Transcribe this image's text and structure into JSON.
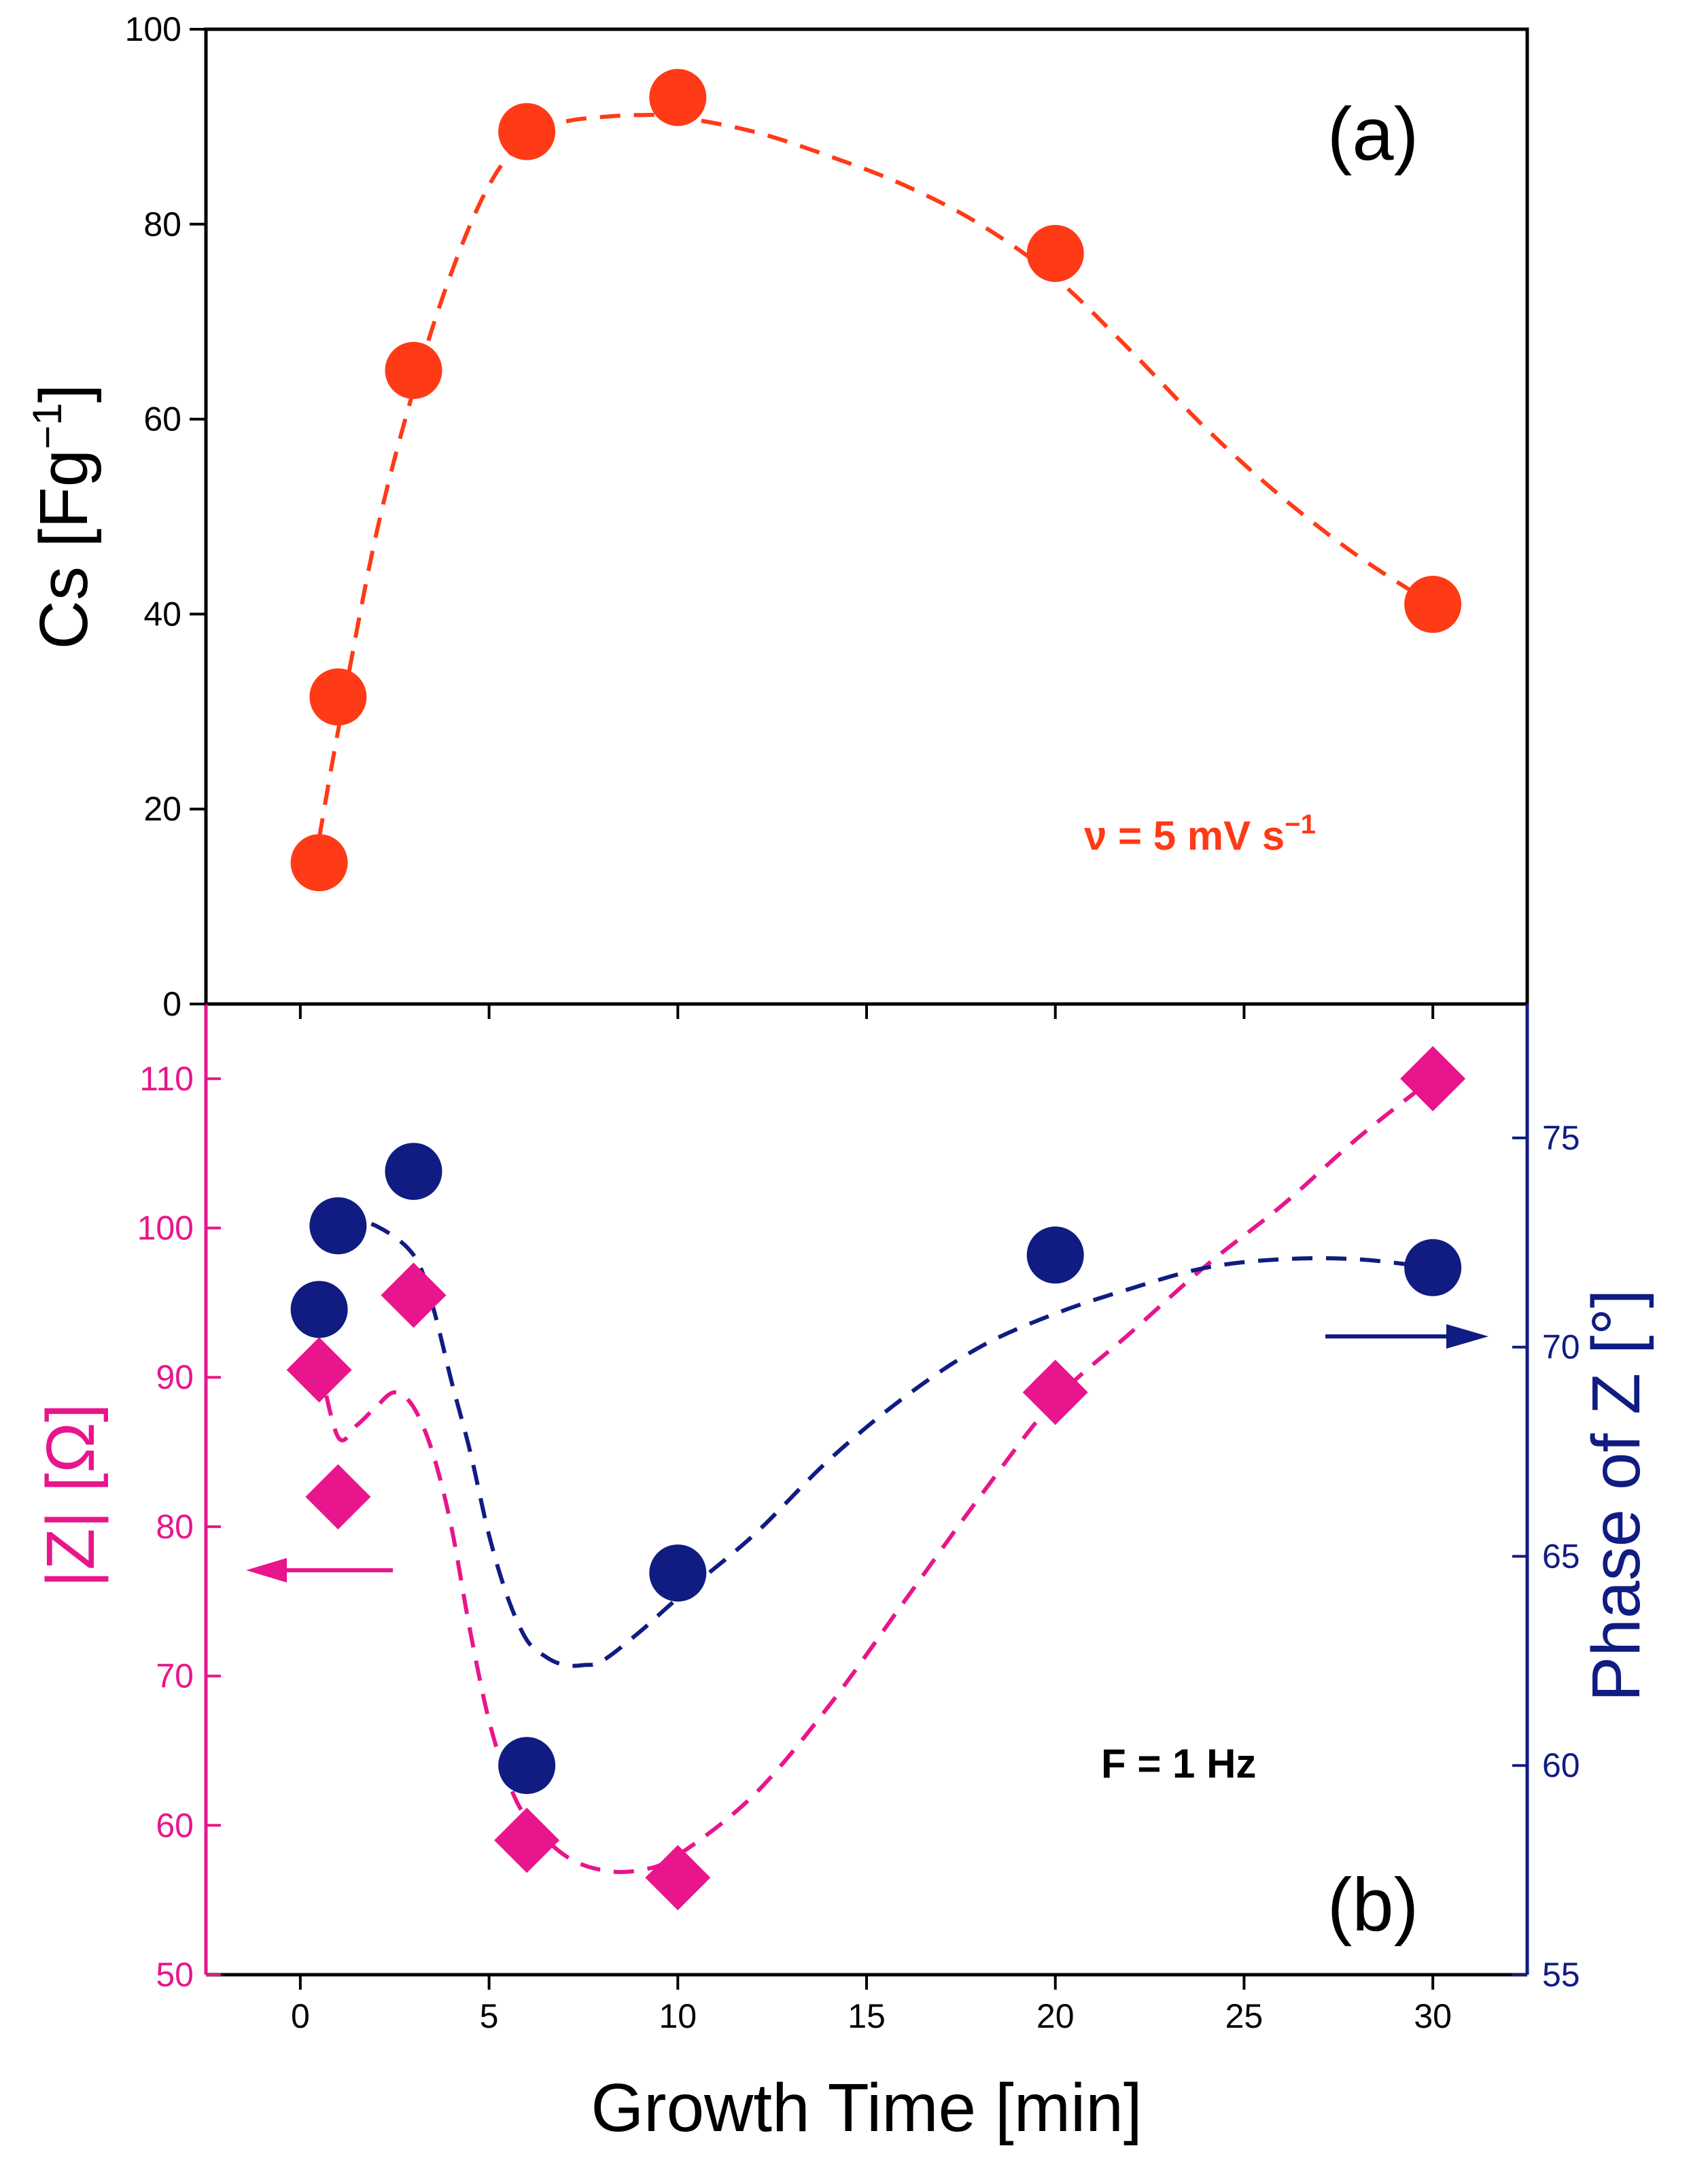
{
  "chart_data": [
    {
      "type": "scatter",
      "panel_label": "(a)",
      "ylabel": "Cs [Fg",
      "ylabel_sup": "−1",
      "ylabel_end": "]",
      "ylim": [
        0,
        100
      ],
      "yticks": [
        0,
        20,
        40,
        60,
        80,
        100
      ],
      "annotation": "ν = 5 mV s",
      "annotation_sup": "−1",
      "series": [
        {
          "name": "Cs",
          "color": "#ff3a16",
          "marker": "circle",
          "x": [
            0.5,
            1,
            3,
            6,
            10,
            20,
            30
          ],
          "y": [
            14.5,
            31.5,
            65,
            89.5,
            93,
            77,
            41
          ]
        }
      ],
      "fit_line": {
        "color": "#ff3a16",
        "x": [
          0.5,
          1,
          2,
          3,
          4,
          5,
          6,
          7,
          8,
          9,
          10,
          12,
          14,
          16,
          18,
          20,
          22,
          24,
          26,
          28,
          30
        ],
        "y": [
          17,
          28,
          48,
          63,
          75,
          84,
          89,
          90.5,
          91,
          91.2,
          91,
          89.5,
          87,
          84,
          80,
          74.5,
          67,
          59,
          52,
          46,
          41
        ]
      }
    },
    {
      "type": "scatter",
      "panel_label": "(b)",
      "xlabel": "Growth Time [min]",
      "xlim": [
        -2.5,
        32.5
      ],
      "xticks": [
        0,
        5,
        10,
        15,
        20,
        25,
        30
      ],
      "ylabel_left": "|Z| [Ω]",
      "ylim_left": [
        50,
        115
      ],
      "yticks_left": [
        50,
        60,
        70,
        80,
        90,
        100,
        110
      ],
      "ylabel_right": "Phase of Z [°]",
      "ylim_right": [
        55,
        78.2
      ],
      "yticks_right": [
        55,
        60,
        65,
        70,
        75
      ],
      "annotation": "F = 1 Hz",
      "left_color": "#e8158c",
      "right_color": "#101c82",
      "series": [
        {
          "name": "|Z|",
          "axis": "left",
          "color": "#e8158c",
          "marker": "diamond",
          "x": [
            0.5,
            1,
            3,
            6,
            10,
            20,
            30
          ],
          "y": [
            90.5,
            82,
            95.5,
            59,
            56.5,
            89,
            110
          ]
        },
        {
          "name": "Phase of Z",
          "axis": "right",
          "color": "#101c82",
          "marker": "circle",
          "x": [
            0.5,
            1,
            3,
            6,
            10,
            20,
            30
          ],
          "y": [
            70.9,
            72.9,
            74.2,
            60,
            64.6,
            72.2,
            71.9
          ]
        }
      ],
      "fit_lines": [
        {
          "axis": "left",
          "color": "#e8158c",
          "x": [
            0.5,
            1,
            1.5,
            2,
            2.5,
            3,
            3.5,
            4,
            4.5,
            5,
            5.5,
            6,
            7,
            8,
            9,
            10,
            12,
            14,
            16,
            18,
            20,
            22,
            24,
            26,
            28,
            30
          ],
          "y": [
            91,
            86,
            86.8,
            88,
            89,
            88,
            85,
            80,
            73,
            67,
            63,
            60.5,
            58,
            57,
            57,
            58,
            62,
            68,
            75,
            82,
            88.5,
            93,
            97.5,
            101.5,
            106,
            110
          ]
        },
        {
          "axis": "right",
          "color": "#101c82",
          "x": [
            1,
            2,
            3,
            3.5,
            4,
            4.5,
            5,
            5.5,
            6,
            6.5,
            7,
            7.5,
            8,
            9,
            10,
            12,
            14,
            16,
            18,
            20,
            22,
            24,
            26,
            28,
            30
          ],
          "y": [
            73.1,
            72.9,
            72.2,
            71,
            69.2,
            67.5,
            65.5,
            64,
            63,
            62.6,
            62.4,
            62.4,
            62.5,
            63.2,
            64,
            65.5,
            67.3,
            68.8,
            70,
            70.8,
            71.4,
            71.9,
            72.1,
            72.1,
            71.9
          ]
        }
      ]
    }
  ]
}
